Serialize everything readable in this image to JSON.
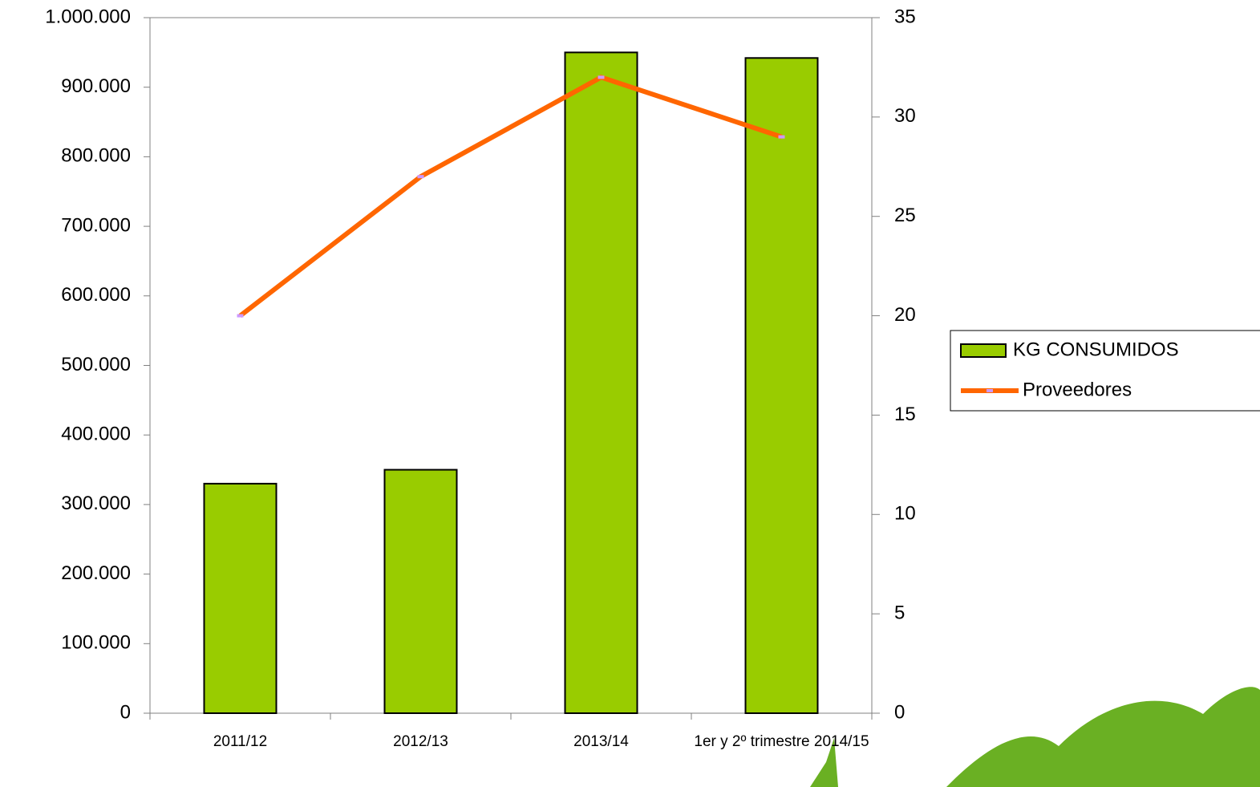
{
  "chart_data": {
    "type": "bar-line",
    "categories": [
      "2011/12",
      "2012/13",
      "2013/14",
      "1er y 2º trimestre 2014/15"
    ],
    "series": [
      {
        "name": "KG CONSUMIDOS",
        "type": "bar",
        "color": "#99cc00",
        "values": [
          330000,
          350000,
          950000,
          942000
        ]
      },
      {
        "name": "Proveedores",
        "type": "line",
        "color": "#ff6600",
        "axis": "y2",
        "values": [
          20,
          27,
          32,
          29
        ]
      }
    ],
    "ylim": [
      0,
      1000000
    ],
    "yticks": [
      0,
      {
        "value": 100000,
        "label": "100.000"
      },
      {
        "value": 200000,
        "label": "200.000"
      },
      {
        "value": 300000,
        "label": "300.000"
      },
      {
        "value": 400000,
        "label": "400.000"
      },
      {
        "value": 500000,
        "label": "500.000"
      },
      {
        "value": 600000,
        "label": "600.000"
      },
      {
        "value": 700000,
        "label": "700.000"
      },
      {
        "value": 800000,
        "label": "800.000"
      },
      {
        "value": 900000,
        "label": "900.000"
      },
      {
        "value": 1000000,
        "label": "1.000.000"
      }
    ],
    "y2lim": [
      0,
      35
    ],
    "y2ticks": [
      0,
      5,
      10,
      15,
      20,
      25,
      30,
      35
    ],
    "legend": "right",
    "grid": false
  }
}
